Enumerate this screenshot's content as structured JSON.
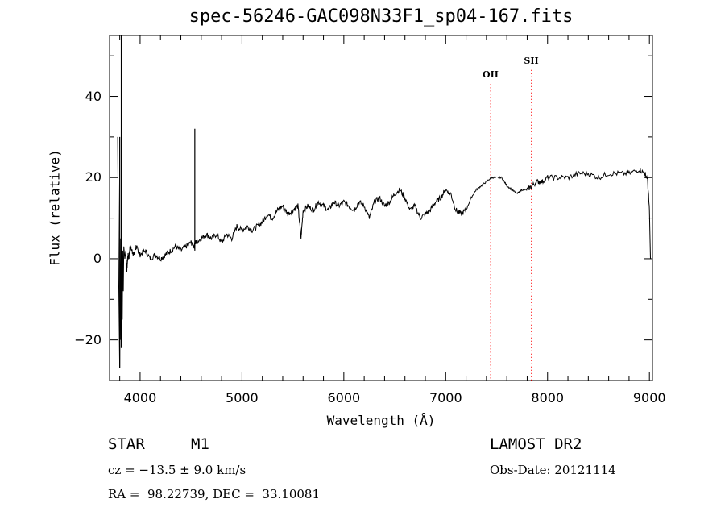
{
  "chart_data": {
    "type": "line",
    "title": "spec-56246-GAC098N33F1_sp04-167.fits",
    "xlabel": "Wavelength (Å)",
    "ylabel": "Flux (relative)",
    "xlim": [
      3700,
      9030
    ],
    "ylim": [
      -30,
      55
    ],
    "xticks": [
      4000,
      5000,
      6000,
      7000,
      8000,
      9000
    ],
    "yticks": [
      -20,
      0,
      20,
      40
    ],
    "xtick_labels": [
      "4000",
      "5000",
      "6000",
      "7000",
      "8000",
      "9000"
    ],
    "ytick_labels": [
      "−20",
      "0",
      "20",
      "40"
    ],
    "grid": false,
    "line_color": "#000000",
    "marker_color": "#ff0000",
    "markers": [
      {
        "label": "OII",
        "x": 7440,
        "y": 45
      },
      {
        "label": "SII",
        "x": 7840,
        "y": 48.5
      }
    ],
    "spikes": [
      {
        "x": 3800,
        "from": -27,
        "to": 30
      },
      {
        "x": 3815,
        "from": -22,
        "to": 55
      },
      {
        "x": 4537,
        "from": 2,
        "to": 32
      }
    ],
    "series": [
      {
        "values_x": [
          3780,
          3790,
          3800,
          3805,
          3810,
          3815,
          3820,
          3825,
          3830,
          3835,
          3840,
          3850,
          3860,
          3870,
          3880,
          3890,
          3900,
          3920,
          3940,
          3960,
          3980,
          4000,
          4050,
          4100,
          4150,
          4200,
          4250,
          4300,
          4350,
          4400,
          4450,
          4500,
          4530,
          4540,
          4550,
          4600,
          4650,
          4700,
          4750,
          4800,
          4850,
          4900,
          4950,
          5000,
          5050,
          5100,
          5150,
          5200,
          5250,
          5300,
          5350,
          5400,
          5450,
          5500,
          5550,
          5580,
          5600,
          5650,
          5700,
          5750,
          5800,
          5850,
          5900,
          5950,
          6000,
          6050,
          6100,
          6150,
          6200,
          6250,
          6300,
          6350,
          6400,
          6450,
          6500,
          6550,
          6600,
          6650,
          6700,
          6750,
          6800,
          6850,
          6900,
          6950,
          7000,
          7050,
          7100,
          7150,
          7200,
          7250,
          7300,
          7350,
          7400,
          7450,
          7500,
          7550,
          7600,
          7650,
          7700,
          7750,
          7800,
          7850,
          7900,
          7950,
          8000,
          8100,
          8200,
          8300,
          8400,
          8500,
          8600,
          8700,
          8800,
          8900,
          8950,
          8980,
          9000,
          9010
        ],
        "values_y": [
          30,
          -5,
          -27,
          5,
          -20,
          0,
          3,
          -15,
          2,
          -8,
          3,
          0,
          2,
          -3,
          1,
          0,
          3,
          2,
          1,
          3,
          2,
          1,
          2,
          0,
          1,
          0,
          1,
          2,
          3,
          2,
          3,
          4,
          3,
          4,
          4,
          5,
          6,
          5,
          6,
          4,
          6,
          5,
          8,
          7,
          8,
          7,
          8,
          9,
          11,
          10,
          12,
          13,
          11,
          12,
          13,
          5,
          12,
          13,
          12,
          14,
          13,
          12,
          14,
          13,
          14,
          13,
          12,
          14,
          13,
          10,
          14,
          15,
          13,
          14,
          16,
          17,
          15,
          12,
          13,
          10,
          11,
          12,
          14,
          15,
          17,
          16,
          12,
          11,
          12,
          15,
          17,
          18,
          19,
          20,
          20,
          20,
          18,
          17,
          16,
          17,
          17,
          18,
          19,
          19,
          20,
          20,
          20,
          21,
          21,
          20,
          21,
          21,
          21,
          22,
          21,
          20,
          12,
          0
        ]
      }
    ]
  },
  "footer": {
    "object_type": "STAR",
    "spectral_class": "M1",
    "cz": "cz = −13.5 ± 9.0 km/s",
    "coords": "RA =  98.22739, DEC =  33.10081",
    "survey": "LAMOST DR2",
    "obs_date": "Obs-Date: 20121114"
  }
}
